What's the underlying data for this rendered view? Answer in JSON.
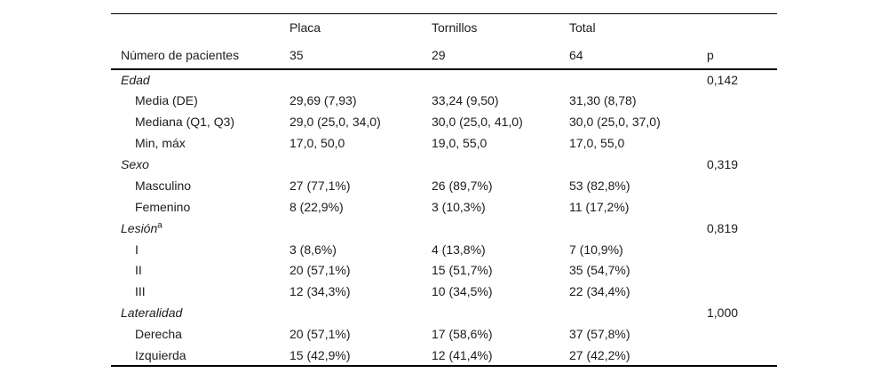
{
  "table": {
    "header": {
      "row1": {
        "label": "",
        "placa": "Placa",
        "tornillos": "Tornillos",
        "total": "Total",
        "p": ""
      },
      "row2": {
        "label": "Número de pacientes",
        "placa": "35",
        "tornillos": "29",
        "total": "64",
        "p": "p"
      }
    },
    "rows": [
      {
        "type": "section",
        "label": "Edad",
        "placa": "",
        "tornillos": "",
        "total": "",
        "p": "0,142"
      },
      {
        "type": "item",
        "label": "Media (DE)",
        "placa": "29,69 (7,93)",
        "tornillos": "33,24 (9,50)",
        "total": "31,30 (8,78)",
        "p": ""
      },
      {
        "type": "item",
        "label": "Mediana (Q1, Q3)",
        "placa": "29,0 (25,0, 34,0)",
        "tornillos": "30,0 (25,0, 41,0)",
        "total": "30,0 (25,0, 37,0)",
        "p": ""
      },
      {
        "type": "item",
        "label": "Min, máx",
        "placa": "17,0, 50,0",
        "tornillos": "19,0, 55,0",
        "total": "17,0, 55,0",
        "p": ""
      },
      {
        "type": "section",
        "label": "Sexo",
        "placa": "",
        "tornillos": "",
        "total": "",
        "p": "0,319"
      },
      {
        "type": "item",
        "label": "Masculino",
        "placa": "27 (77,1%)",
        "tornillos": "26 (89,7%)",
        "total": "53 (82,8%)",
        "p": ""
      },
      {
        "type": "item",
        "label": "Femenino",
        "placa": "8 (22,9%)",
        "tornillos": "3 (10,3%)",
        "total": "11 (17,2%)",
        "p": ""
      },
      {
        "type": "section",
        "label": "Lesión",
        "label_sup": "a",
        "placa": "",
        "tornillos": "",
        "total": "",
        "p": "0,819"
      },
      {
        "type": "item",
        "label": "I",
        "placa": "3 (8,6%)",
        "tornillos": "4 (13,8%)",
        "total": "7 (10,9%)",
        "p": ""
      },
      {
        "type": "item",
        "label": "II",
        "placa": "20 (57,1%)",
        "tornillos": "15 (51,7%)",
        "total": "35 (54,7%)",
        "p": ""
      },
      {
        "type": "item",
        "label": "III",
        "placa": "12 (34,3%)",
        "tornillos": "10 (34,5%)",
        "total": "22 (34,4%)",
        "p": ""
      },
      {
        "type": "section",
        "label": "Lateralidad",
        "placa": "",
        "tornillos": "",
        "total": "",
        "p": "1,000"
      },
      {
        "type": "item",
        "label": "Derecha",
        "placa": "20 (57,1%)",
        "tornillos": "17 (58,6%)",
        "total": "37 (57,8%)",
        "p": ""
      },
      {
        "type": "item",
        "label": "Izquierda",
        "placa": "15 (42,9%)",
        "tornillos": "12 (41,4%)",
        "total": "27 (42,2%)",
        "p": ""
      }
    ],
    "colors": {
      "rule": "#000000",
      "text": "#1c1c1c",
      "background": "#ffffff"
    }
  }
}
